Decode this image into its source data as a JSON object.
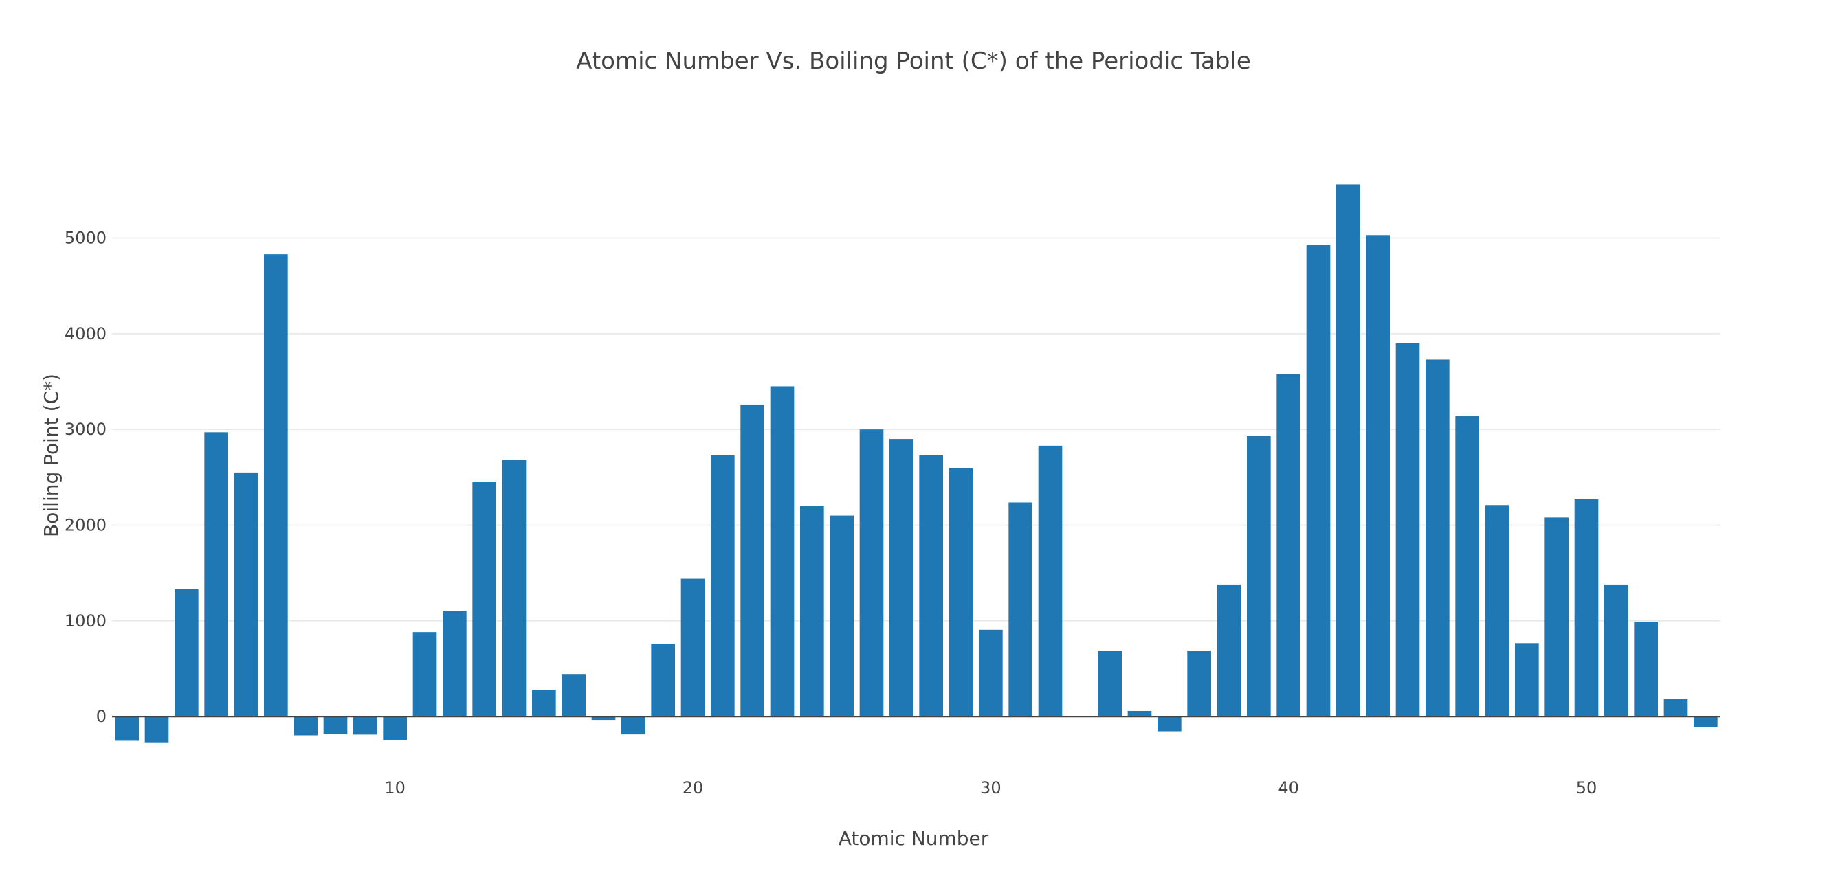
{
  "chart_data": {
    "type": "bar",
    "title": "Atomic Number Vs. Boiling Point (C*) of the Periodic Table",
    "xlabel": "Atomic Number",
    "ylabel": "Boiling Point (C*)",
    "x": [
      1,
      2,
      3,
      4,
      5,
      6,
      7,
      8,
      9,
      10,
      11,
      12,
      13,
      14,
      15,
      16,
      17,
      18,
      19,
      20,
      21,
      22,
      23,
      24,
      25,
      26,
      27,
      28,
      29,
      30,
      31,
      32,
      33,
      34,
      35,
      36,
      37,
      38,
      39,
      40,
      41,
      42,
      43,
      44,
      45,
      46,
      47,
      48,
      49,
      50,
      51,
      52,
      53,
      54
    ],
    "values": [
      -253,
      -269,
      1330,
      2970,
      2550,
      4830,
      -196,
      -183,
      -188,
      -246,
      883,
      1105,
      2450,
      2680,
      280,
      445,
      -35,
      -186,
      760,
      1440,
      2730,
      3260,
      3450,
      2200,
      2100,
      3000,
      2900,
      2730,
      2595,
      907,
      2237,
      2830,
      null,
      685,
      59,
      -153,
      690,
      1380,
      2930,
      3580,
      4930,
      5560,
      5030,
      3900,
      3730,
      3140,
      2210,
      767,
      2080,
      2270,
      1380,
      990,
      183,
      -108
    ],
    "xlim": [
      0.5,
      54.5
    ],
    "ylim": [
      -300,
      5800
    ],
    "x_ticks": [
      10,
      20,
      30,
      40,
      50
    ],
    "y_ticks": [
      0,
      1000,
      2000,
      3000,
      4000,
      5000
    ],
    "bar_color": "#1f77b4",
    "grid": true
  }
}
